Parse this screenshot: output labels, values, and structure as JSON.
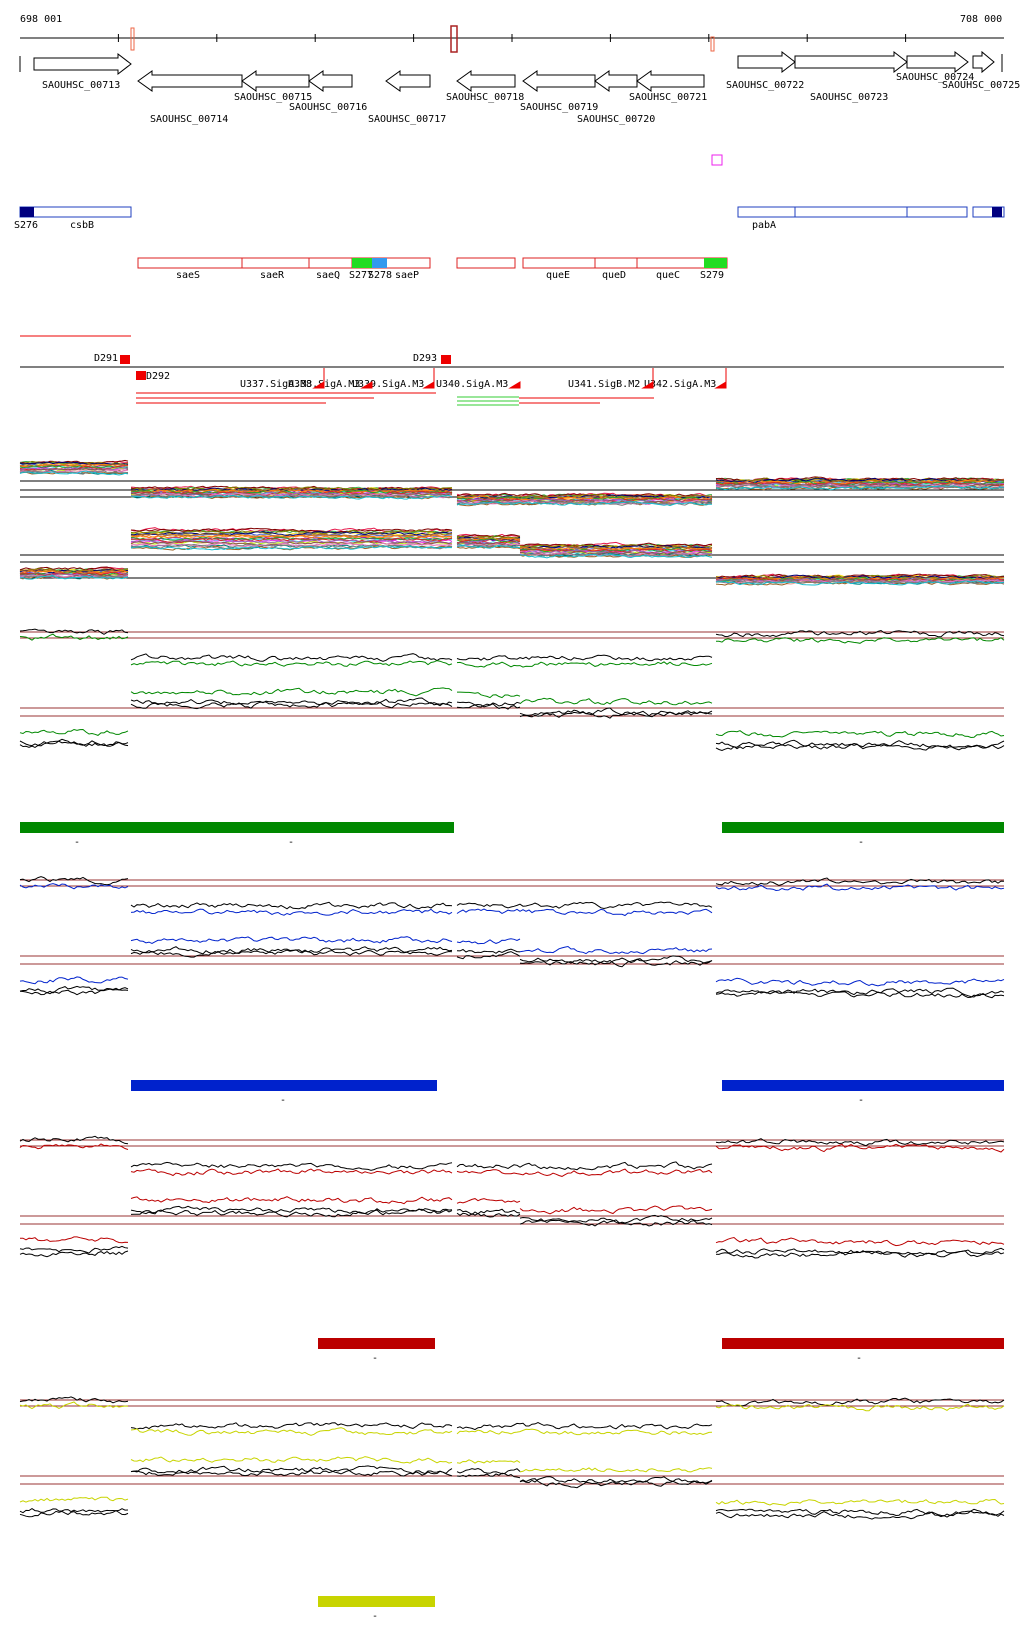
{
  "ruler": {
    "start_label": "698 001",
    "end_label": "708 000"
  },
  "colors": {
    "gene_outline": "#000000",
    "operon_blue": "#1f3fbf",
    "operon_red": "#dd2222",
    "sig_green": "#22dd22",
    "sig_blue": "#3399ee",
    "feature_red": "#ee0000",
    "navy": "#000080",
    "magenta": "#ee22ee",
    "track1": "#008800",
    "track2": "#0022cc",
    "track3": "#bb0000",
    "track4": "#c8d400",
    "threshold": "#993333"
  },
  "genes": [
    {
      "label": "SAOUHSC_00713",
      "strand": "+"
    },
    {
      "label": "SAOUHSC_00714",
      "strand": "-"
    },
    {
      "label": "SAOUHSC_00715",
      "strand": "-"
    },
    {
      "label": "SAOUHSC_00716",
      "strand": "-"
    },
    {
      "label": "SAOUHSC_00717",
      "strand": "-"
    },
    {
      "label": "SAOUHSC_00718",
      "strand": "-"
    },
    {
      "label": "SAOUHSC_00719",
      "strand": "-"
    },
    {
      "label": "SAOUHSC_00720",
      "strand": "-"
    },
    {
      "label": "SAOUHSC_00721",
      "strand": "-"
    },
    {
      "label": "SAOUHSC_00722",
      "strand": "+"
    },
    {
      "label": "SAOUHSC_00723",
      "strand": "+"
    },
    {
      "label": "SAOUHSC_00724",
      "strand": "+"
    },
    {
      "label": "SAOUHSC_00725",
      "strand": "+"
    }
  ],
  "blue_operons": {
    "left_labels": [
      "S276",
      "csbB"
    ],
    "right_labels": [
      "pabA"
    ]
  },
  "red_operons": {
    "left_labels": [
      "saeS",
      "saeR",
      "saeQ",
      "S277",
      "S278",
      "saeP"
    ],
    "right_labels": [
      "queE",
      "queD",
      "queC",
      "S279"
    ]
  },
  "features": {
    "downstream": [
      "D291",
      "D292",
      "D293"
    ],
    "upstream": [
      "U337.SigA.M3",
      "U338.SigA.M3",
      "U339.SigA.M3",
      "U340.SigA.M3",
      "U341.SigB.M2",
      "U342.SigA.M3"
    ]
  },
  "tracks": [
    {
      "color_key": "track1",
      "bar_labels": [
        "-",
        "-",
        "-"
      ]
    },
    {
      "color_key": "track2",
      "bar_labels": [
        "-",
        "-"
      ]
    },
    {
      "color_key": "track3",
      "bar_labels": [
        "-",
        "-"
      ]
    },
    {
      "color_key": "track4",
      "bar_labels": [
        "-"
      ]
    }
  ]
}
